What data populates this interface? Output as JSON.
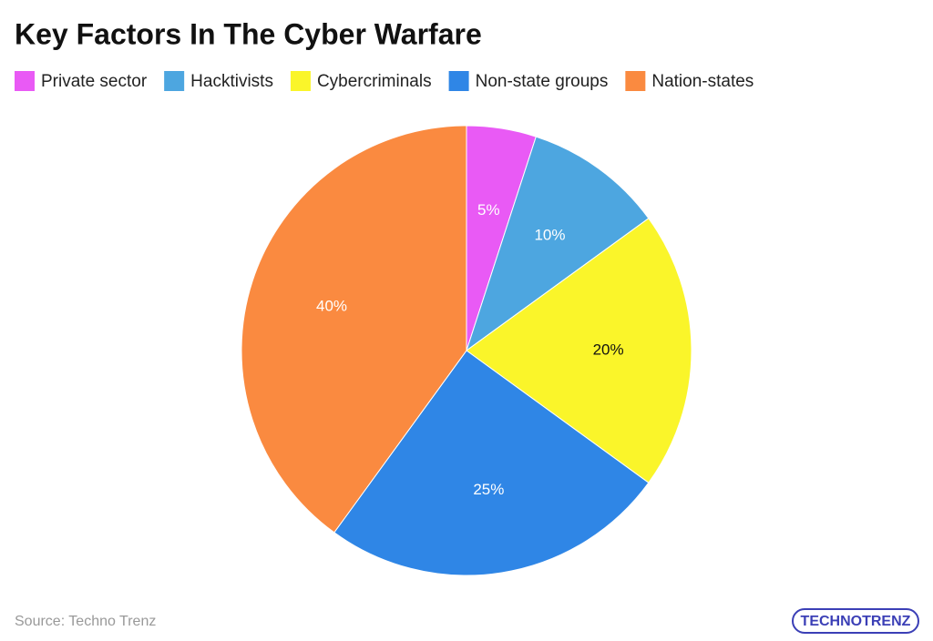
{
  "chart_data": {
    "type": "pie",
    "title": "Key Factors In The Cyber Warfare",
    "categories": [
      "Private sector",
      "Hacktivists",
      "Cybercriminals",
      "Non-state groups",
      "Nation-states"
    ],
    "values": [
      5,
      10,
      20,
      25,
      40
    ],
    "value_labels": [
      "5%",
      "10%",
      "20%",
      "25%",
      "40%"
    ],
    "colors": [
      "#e95af5",
      "#4da6e0",
      "#faf52a",
      "#2f86e6",
      "#fa8a40"
    ],
    "legend": "top-left",
    "source": "Source: Techno Trenz",
    "logo": "TECHNOTRENZ"
  }
}
